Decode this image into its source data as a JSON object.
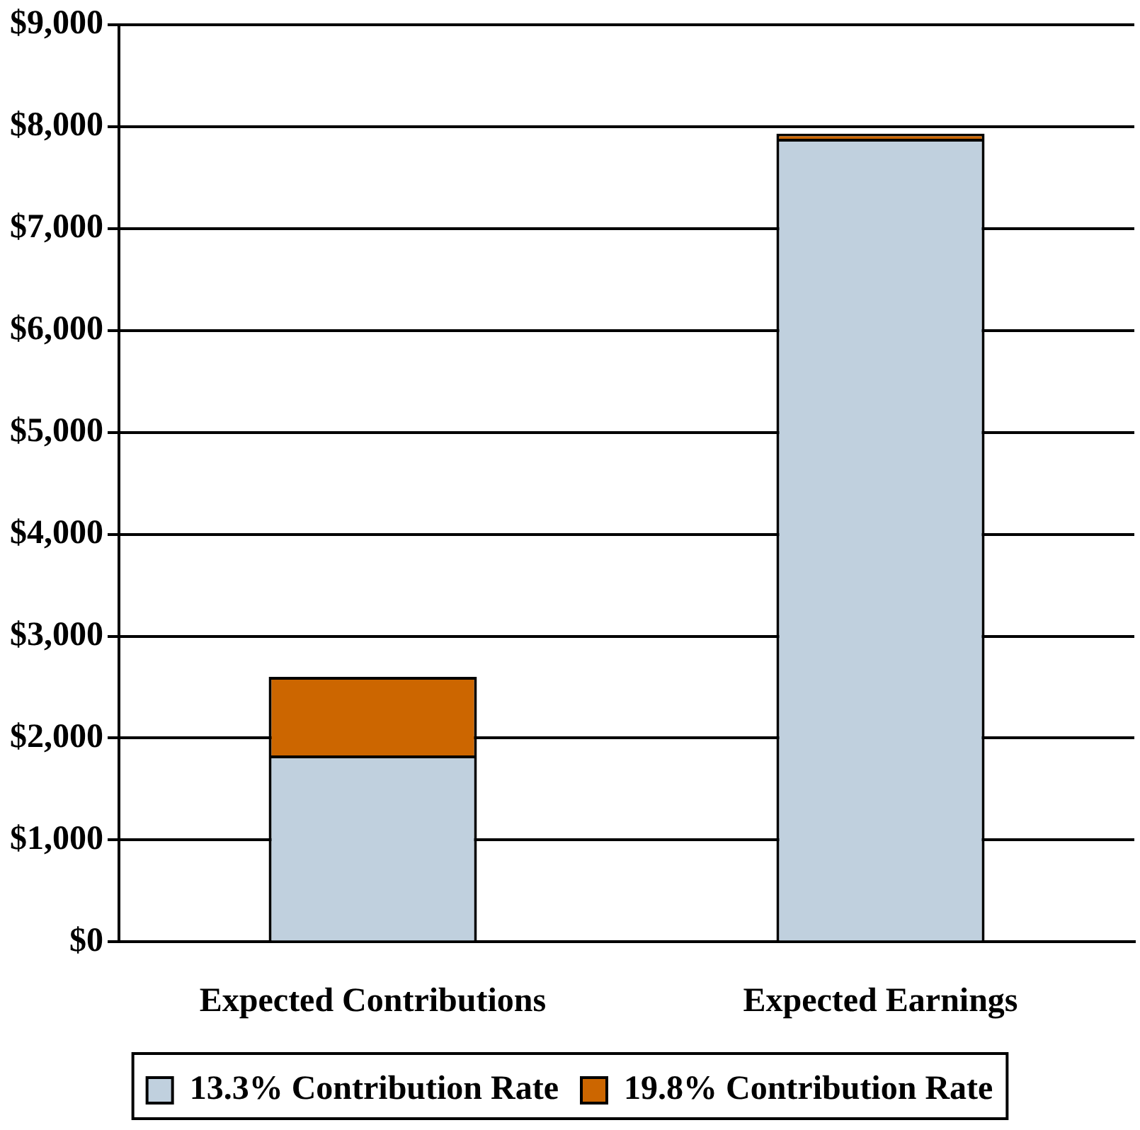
{
  "chart_data": {
    "type": "bar",
    "stacked": true,
    "categories": [
      "Expected Contributions",
      "Expected Earnings"
    ],
    "series": [
      {
        "name": "13.3% Contribution Rate",
        "color": "#c0d0de",
        "values": [
          1830,
          7880
        ]
      },
      {
        "name": "19.8% Contribution Rate",
        "color": "#cc6600",
        "values": [
          770,
          50
        ]
      }
    ],
    "ylim": [
      0,
      9000
    ],
    "yticks": [
      {
        "value": 0,
        "label": "$0"
      },
      {
        "value": 1000,
        "label": "$1,000"
      },
      {
        "value": 2000,
        "label": "$2,000"
      },
      {
        "value": 3000,
        "label": "$3,000"
      },
      {
        "value": 4000,
        "label": "$4,000"
      },
      {
        "value": 5000,
        "label": "$5,000"
      },
      {
        "value": 6000,
        "label": "$6,000"
      },
      {
        "value": 7000,
        "label": "$7,000"
      },
      {
        "value": 8000,
        "label": "$8,000"
      },
      {
        "value": 9000,
        "label": "$9,000"
      }
    ],
    "grid": "y",
    "legend": "bottom"
  }
}
